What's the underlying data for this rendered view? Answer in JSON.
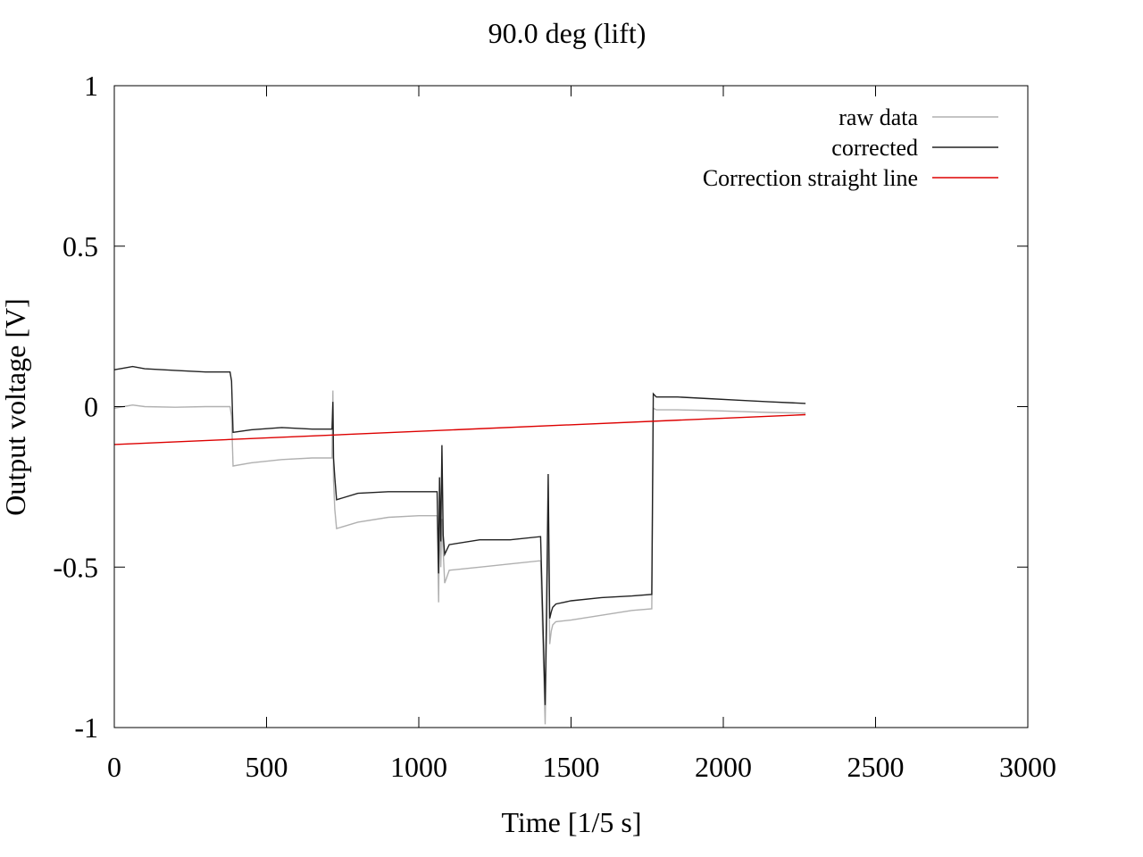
{
  "chart_data": {
    "type": "line",
    "title": "90.0 deg (lift)",
    "xlabel": "Time [1/5 s]",
    "ylabel": "Output voltage [V]",
    "xlim": [
      0,
      3000
    ],
    "ylim": [
      -1,
      1
    ],
    "xticks": [
      0,
      500,
      1000,
      1500,
      2000,
      2500,
      3000
    ],
    "yticks": [
      -1,
      -0.5,
      0,
      0.5,
      1
    ],
    "xtick_labels": [
      "0",
      "500",
      "1000",
      "1500",
      "2000",
      "2500",
      "3000"
    ],
    "ytick_labels": [
      "-1",
      "-0.5",
      "0",
      "0.5",
      "1"
    ],
    "grid": false,
    "legend_position": "top-right",
    "series": [
      {
        "name": "raw data",
        "color": "#b0b0b0",
        "x": [
          0,
          30,
          60,
          100,
          200,
          300,
          380,
          385,
          390,
          450,
          550,
          650,
          715,
          718,
          720,
          724,
          730,
          800,
          900,
          1000,
          1060,
          1065,
          1068,
          1072,
          1076,
          1080,
          1085,
          1100,
          1200,
          1300,
          1400,
          1415,
          1420,
          1425,
          1430,
          1435,
          1440,
          1450,
          1500,
          1600,
          1700,
          1765,
          1770,
          1780,
          1850,
          1950,
          2050,
          2150,
          2270
        ],
        "y": [
          -0.005,
          0.0,
          0.005,
          0.0,
          -0.002,
          0.0,
          0.0,
          -0.03,
          -0.185,
          -0.175,
          -0.165,
          -0.16,
          -0.16,
          0.05,
          -0.23,
          -0.32,
          -0.38,
          -0.36,
          -0.345,
          -0.34,
          -0.34,
          -0.61,
          -0.33,
          -0.5,
          -0.35,
          -0.45,
          -0.55,
          -0.51,
          -0.5,
          -0.49,
          -0.48,
          -0.99,
          -0.7,
          -0.35,
          -0.74,
          -0.7,
          -0.68,
          -0.67,
          -0.665,
          -0.65,
          -0.635,
          -0.63,
          -0.005,
          -0.01,
          -0.01,
          -0.012,
          -0.015,
          -0.018,
          -0.02
        ]
      },
      {
        "name": "corrected",
        "color": "#222222",
        "x": [
          0,
          30,
          60,
          100,
          200,
          300,
          380,
          385,
          390,
          450,
          550,
          650,
          715,
          718,
          720,
          724,
          730,
          800,
          900,
          1000,
          1060,
          1065,
          1068,
          1072,
          1076,
          1080,
          1085,
          1100,
          1200,
          1300,
          1400,
          1415,
          1420,
          1425,
          1430,
          1435,
          1440,
          1450,
          1500,
          1600,
          1700,
          1765,
          1770,
          1780,
          1850,
          1950,
          2050,
          2150,
          2270
        ],
        "y": [
          0.115,
          0.12,
          0.125,
          0.118,
          0.113,
          0.108,
          0.108,
          0.08,
          -0.08,
          -0.072,
          -0.065,
          -0.07,
          -0.07,
          0.015,
          -0.16,
          -0.22,
          -0.29,
          -0.27,
          -0.265,
          -0.265,
          -0.265,
          -0.52,
          -0.22,
          -0.42,
          -0.12,
          -0.4,
          -0.46,
          -0.43,
          -0.415,
          -0.415,
          -0.405,
          -0.93,
          -0.6,
          -0.21,
          -0.66,
          -0.64,
          -0.625,
          -0.615,
          -0.605,
          -0.595,
          -0.59,
          -0.585,
          0.04,
          0.03,
          0.03,
          0.025,
          0.02,
          0.015,
          0.01
        ]
      },
      {
        "name": "Correction straight line",
        "color": "#dd0000",
        "x": [
          0,
          2270
        ],
        "y": [
          -0.118,
          -0.025
        ]
      }
    ]
  }
}
